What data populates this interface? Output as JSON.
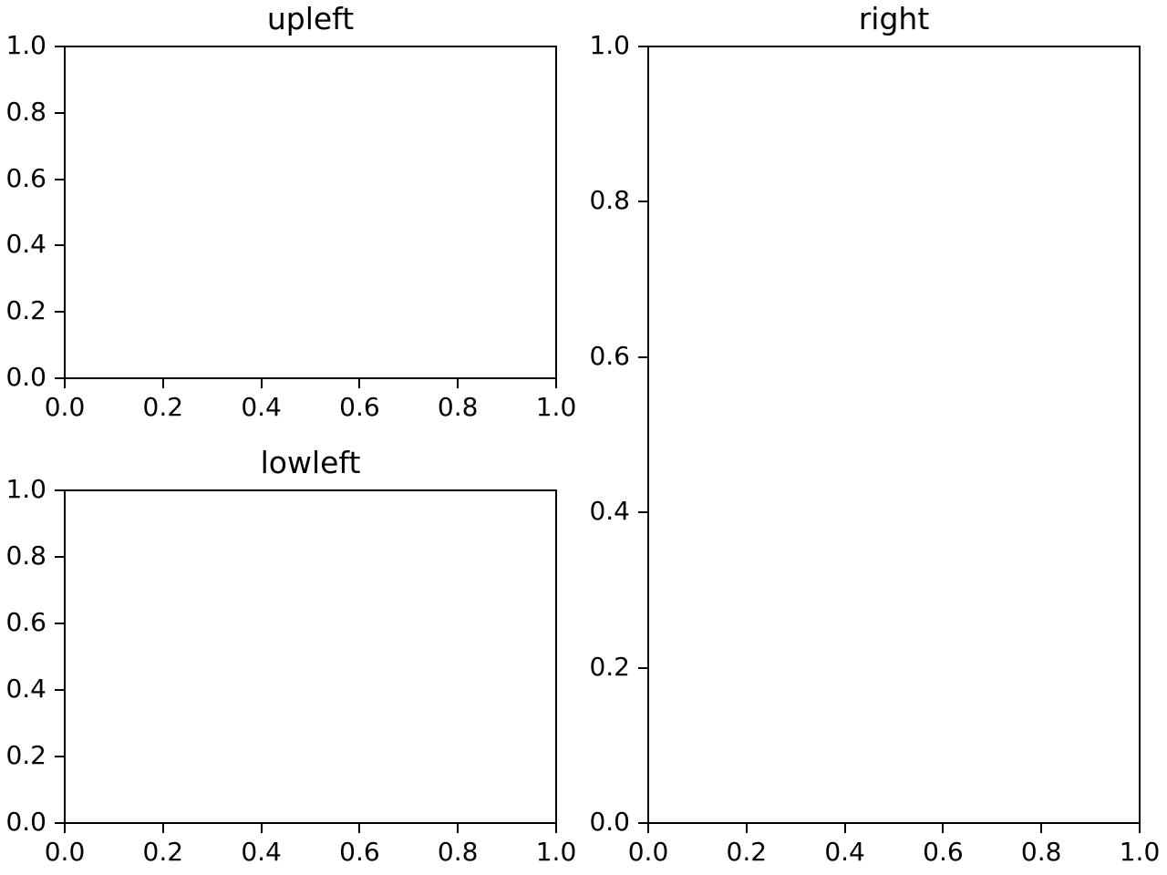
{
  "figure": {
    "background_color": "#ffffff",
    "spine_color": "#000000",
    "text_color": "#000000",
    "mosaic_layout": [
      [
        "upleft",
        "right"
      ],
      [
        "lowleft",
        "right"
      ]
    ]
  },
  "chart_data": [
    {
      "id": "upleft",
      "type": "line",
      "title": "upleft",
      "series": [],
      "xlim": [
        0.0,
        1.0
      ],
      "ylim": [
        0.0,
        1.0
      ],
      "xticks": [
        0.0,
        0.2,
        0.4,
        0.6,
        0.8,
        1.0
      ],
      "yticks": [
        0.0,
        0.2,
        0.4,
        0.6,
        0.8,
        1.0
      ],
      "xtick_labels": [
        "0.0",
        "0.2",
        "0.4",
        "0.6",
        "0.8",
        "1.0"
      ],
      "ytick_labels": [
        "0.0",
        "0.2",
        "0.4",
        "0.6",
        "0.8",
        "1.0"
      ],
      "grid": false,
      "legend": null
    },
    {
      "id": "lowleft",
      "type": "line",
      "title": "lowleft",
      "series": [],
      "xlim": [
        0.0,
        1.0
      ],
      "ylim": [
        0.0,
        1.0
      ],
      "xticks": [
        0.0,
        0.2,
        0.4,
        0.6,
        0.8,
        1.0
      ],
      "yticks": [
        0.0,
        0.2,
        0.4,
        0.6,
        0.8,
        1.0
      ],
      "xtick_labels": [
        "0.0",
        "0.2",
        "0.4",
        "0.6",
        "0.8",
        "1.0"
      ],
      "ytick_labels": [
        "0.0",
        "0.2",
        "0.4",
        "0.6",
        "0.8",
        "1.0"
      ],
      "grid": false,
      "legend": null
    },
    {
      "id": "right",
      "type": "line",
      "title": "right",
      "series": [],
      "xlim": [
        0.0,
        1.0
      ],
      "ylim": [
        0.0,
        1.0
      ],
      "xticks": [
        0.0,
        0.2,
        0.4,
        0.6,
        0.8,
        1.0
      ],
      "yticks": [
        0.0,
        0.2,
        0.4,
        0.6,
        0.8,
        1.0
      ],
      "xtick_labels": [
        "0.0",
        "0.2",
        "0.4",
        "0.6",
        "0.8",
        "1.0"
      ],
      "ytick_labels": [
        "0.0",
        "0.2",
        "0.4",
        "0.6",
        "0.8",
        "1.0"
      ],
      "grid": false,
      "legend": null
    }
  ]
}
